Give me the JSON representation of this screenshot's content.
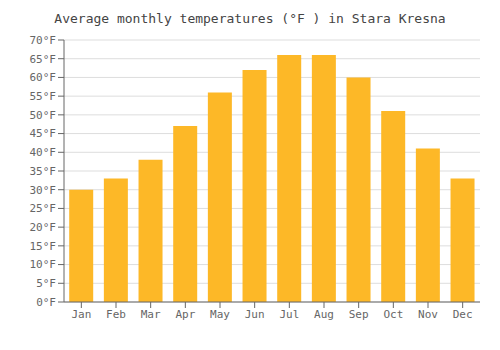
{
  "chart_data": {
    "type": "bar",
    "title": "Average monthly temperatures (°F ) in Stara Kresna",
    "categories": [
      "Jan",
      "Feb",
      "Mar",
      "Apr",
      "May",
      "Jun",
      "Jul",
      "Aug",
      "Sep",
      "Oct",
      "Nov",
      "Dec"
    ],
    "values": [
      30,
      33,
      38,
      47,
      56,
      62,
      66,
      66,
      60,
      51,
      41,
      33
    ],
    "color": "#FDB827",
    "ylim": [
      0,
      70
    ],
    "yticks": [
      {
        "value": 0,
        "label": "0°F"
      },
      {
        "value": 5,
        "label": "5°F"
      },
      {
        "value": 10,
        "label": "10°F"
      },
      {
        "value": 15,
        "label": "15°F"
      },
      {
        "value": 20,
        "label": "20°F"
      },
      {
        "value": 25,
        "label": "25°F"
      },
      {
        "value": 30,
        "label": "30°F"
      },
      {
        "value": 35,
        "label": "35°F"
      },
      {
        "value": 40,
        "label": "40°F"
      },
      {
        "value": 45,
        "label": "45°F"
      },
      {
        "value": 50,
        "label": "50°F"
      },
      {
        "value": 55,
        "label": "55°F"
      },
      {
        "value": 60,
        "label": "60°F"
      },
      {
        "value": 65,
        "label": "65°F"
      },
      {
        "value": 70,
        "label": "70°F"
      }
    ],
    "grid": true
  }
}
